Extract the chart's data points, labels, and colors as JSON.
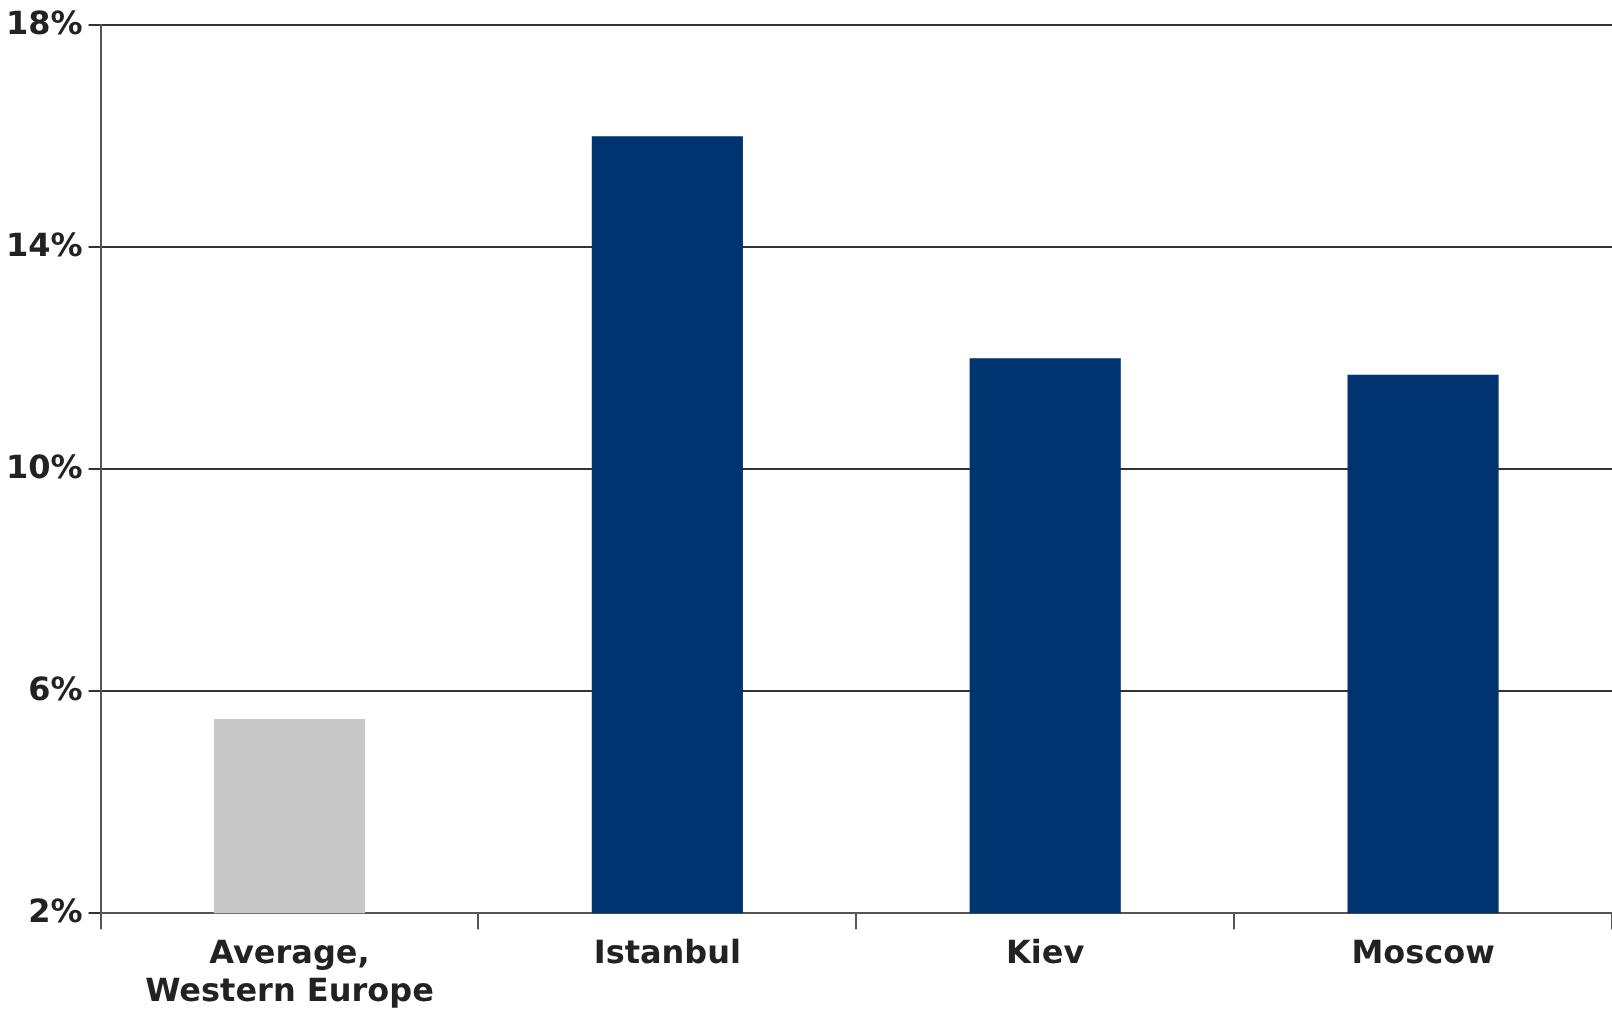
{
  "chart_data": {
    "type": "bar",
    "categories": [
      "Average, Western Europe",
      "Istanbul",
      "Kiev",
      "Moscow"
    ],
    "values": [
      5.5,
      16.0,
      12.0,
      11.7
    ],
    "colors": [
      "#c8c8c8",
      "#003471",
      "#003471",
      "#003471"
    ],
    "ylim": [
      2,
      18
    ],
    "yticks": [
      {
        "value": 2,
        "label": "2%"
      },
      {
        "value": 6,
        "label": "6%"
      },
      {
        "value": 10,
        "label": "10%"
      },
      {
        "value": 14,
        "label": "14%"
      },
      {
        "value": 18,
        "label": "18%"
      }
    ],
    "grid": "y",
    "legend": false
  }
}
